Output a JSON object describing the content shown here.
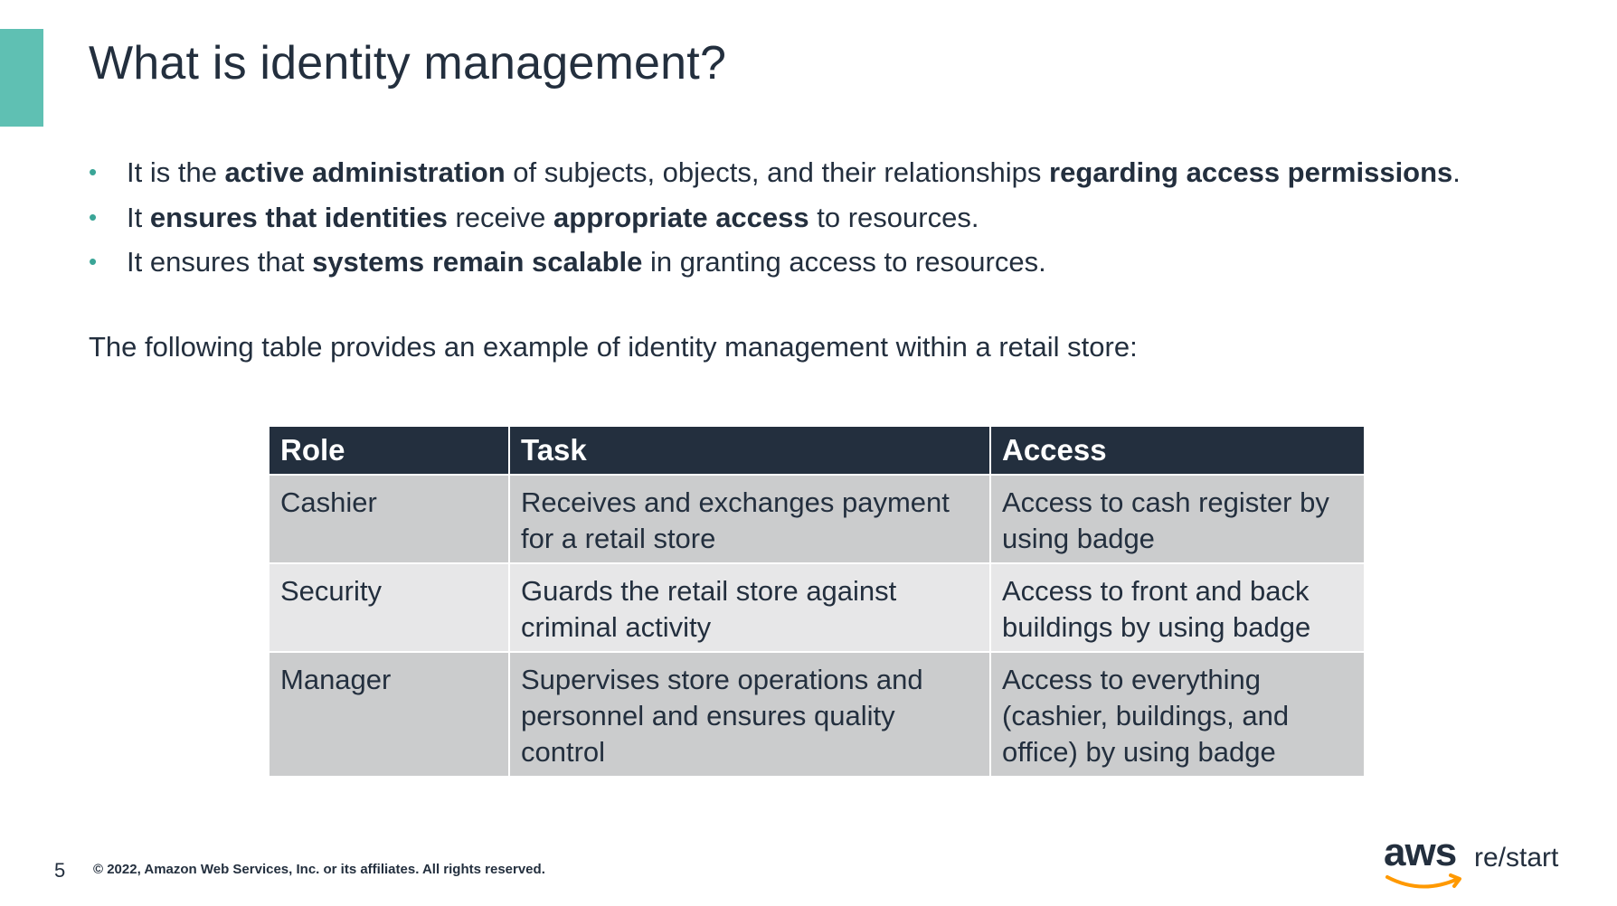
{
  "slide": {
    "title": "What is identity management?",
    "bullets": [
      [
        "It is the ",
        "active administration",
        " of subjects, objects, and their relationships ",
        "regarding access permissions",
        "."
      ],
      [
        "It ",
        "ensures that identities",
        " receive ",
        "appropriate access",
        " to resources."
      ],
      [
        "It ensures that ",
        "systems remain scalable",
        " in granting access to resources."
      ]
    ],
    "intro": "The following table provides an example of identity management within a retail store:",
    "table": {
      "headers": [
        "Role",
        "Task",
        "Access"
      ],
      "rows": [
        [
          "Cashier",
          "Receives and exchanges payment\nfor a retail store",
          "Access to cash register by\nusing badge"
        ],
        [
          "Security",
          "Guards the retail store against\ncriminal activity",
          "Access to front and back\nbuildings by using badge"
        ],
        [
          "Manager",
          "Supervises store operations and\npersonnel and ensures quality\ncontrol",
          "Access to everything\n(cashier, buildings, and\noffice) by using badge"
        ]
      ]
    },
    "footer": {
      "page_number": "5",
      "copyright": "© 2022, Amazon Web Services, Inc. or its affiliates. All rights reserved.",
      "logo_aws": "aws",
      "logo_restart": "re/start"
    },
    "colors": {
      "accent": "#5fc0b3",
      "header_bg": "#232f3e",
      "row_dark": "#cbcccd",
      "row_light": "#e7e7e8",
      "logo_smile": "#ff9900"
    }
  }
}
